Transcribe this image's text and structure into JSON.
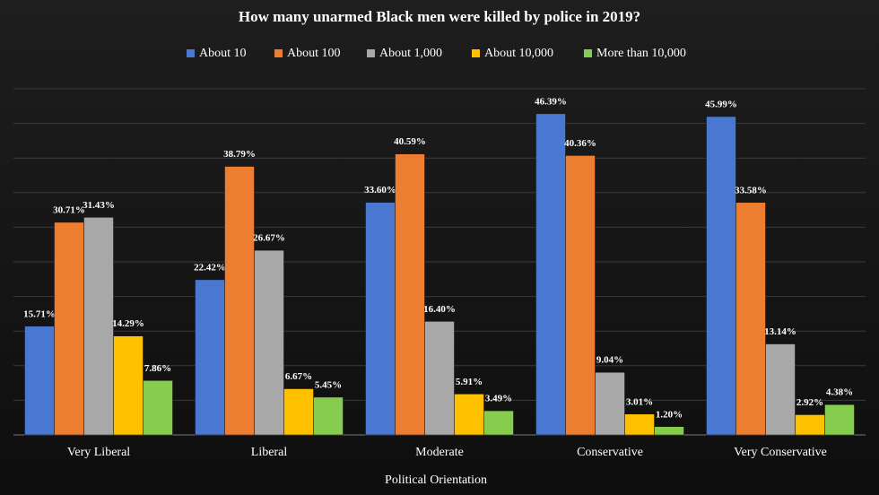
{
  "chart_data": {
    "type": "bar",
    "title": "How many unarmed Black men were killed by police in 2019?",
    "x_label": "Political Orientation",
    "categories": [
      "Very Liberal",
      "Liberal",
      "Moderate",
      "Conservative",
      "Very Conservative"
    ],
    "series": [
      {
        "name": "About 10",
        "color": "#4a78d0",
        "values": [
          15.71,
          22.42,
          33.6,
          46.39,
          45.99
        ],
        "value_labels": [
          "15.71%",
          "22.42%",
          "33.60%",
          "46.39%",
          "45.99%"
        ]
      },
      {
        "name": "About 100",
        "color": "#ed7d31",
        "values": [
          30.71,
          38.79,
          40.59,
          40.36,
          33.58
        ],
        "value_labels": [
          "30.71%",
          "38.79%",
          "40.59%",
          "40.36%",
          "33.58%"
        ]
      },
      {
        "name": "About 1,000",
        "color": "#a8a8a8",
        "values": [
          31.43,
          26.67,
          16.4,
          9.04,
          13.14
        ],
        "value_labels": [
          "31.43%",
          "26.67%",
          "16.40%",
          "9.04%",
          "13.14%"
        ]
      },
      {
        "name": "About 10,000",
        "color": "#ffc000",
        "values": [
          14.29,
          6.67,
          5.91,
          3.01,
          2.92
        ],
        "value_labels": [
          "14.29%",
          "6.67%",
          "5.91%",
          "3.01%",
          "2.92%"
        ]
      },
      {
        "name": "More than 10,000",
        "color": "#86cc4e",
        "values": [
          7.86,
          5.45,
          3.49,
          1.2,
          4.38
        ],
        "value_labels": [
          "7.86%",
          "5.45%",
          "3.49%",
          "1.20%",
          "4.38%"
        ]
      }
    ],
    "ylim": [
      0,
      50
    ],
    "yticks": [
      0,
      5,
      10,
      15,
      20,
      25,
      30,
      35,
      40,
      45,
      50
    ],
    "grid": true,
    "legend": "top"
  }
}
